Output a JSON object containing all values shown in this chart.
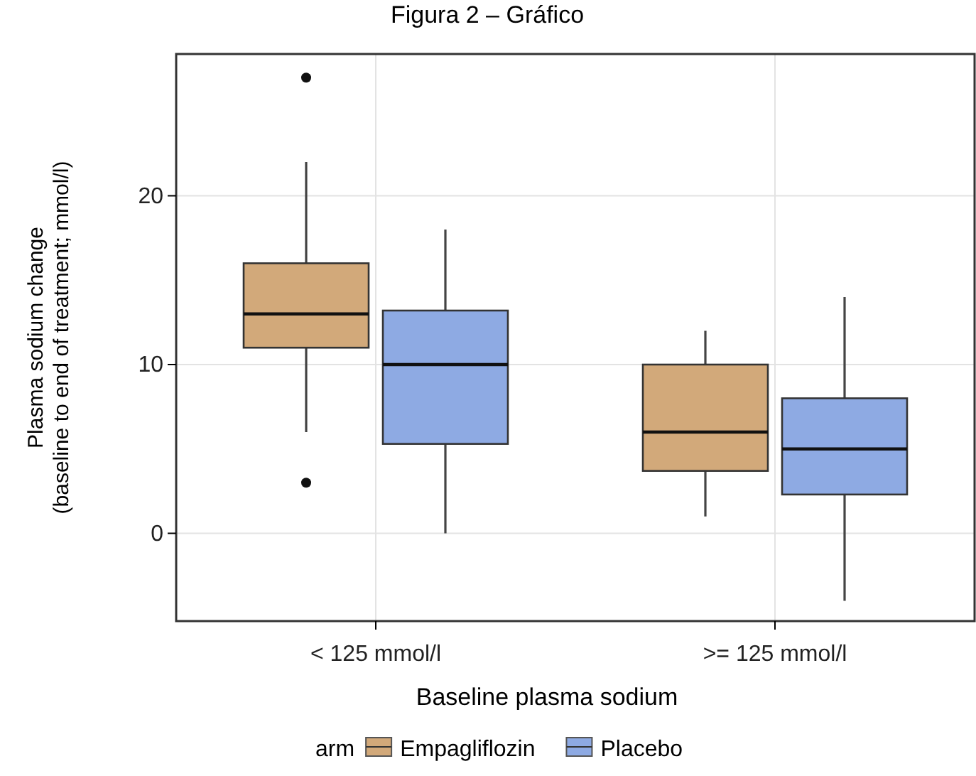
{
  "chart_data": {
    "type": "box",
    "title": "Figura 2 – Gráfico",
    "xlabel": "Baseline plasma sodium",
    "ylabel": "Plasma sodium change\n(baseline to end of treatment; mmol/l)",
    "legend_title": "arm",
    "categories": [
      "< 125 mmol/l",
      ">= 125 mmol/l"
    ],
    "series": [
      {
        "name": "Empagliflozin",
        "color": "#d2a97a",
        "boxes": [
          {
            "low": 6,
            "q1": 11,
            "median": 13,
            "q3": 16,
            "high": 22,
            "outliers": [
              27,
              3
            ]
          },
          {
            "low": 1,
            "q1": 3.7,
            "median": 6,
            "q3": 10,
            "high": 12
          }
        ]
      },
      {
        "name": "Placebo",
        "color": "#8eaae3",
        "boxes": [
          {
            "low": 0,
            "q1": 5.3,
            "median": 10,
            "q3": 13.2,
            "high": 18
          },
          {
            "low": -4,
            "q1": 2.3,
            "median": 5,
            "q3": 8,
            "high": 14
          }
        ]
      }
    ],
    "ylim": [
      -5.2,
      28.4
    ],
    "yticks": [
      0,
      10,
      20
    ],
    "grid": true,
    "legend": "bottom"
  }
}
